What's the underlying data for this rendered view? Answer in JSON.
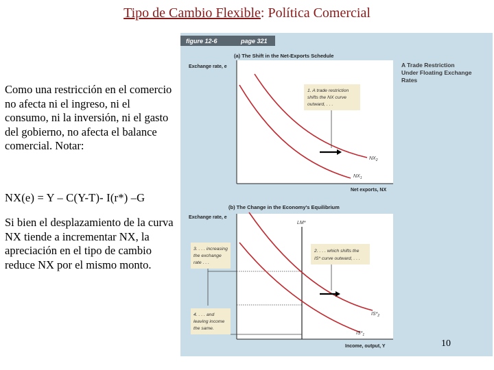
{
  "slide": {
    "title_main": "Tipo de Cambio Flexible",
    "title_rest": ": Política Comercial",
    "paragraph1": "Como una restricción en el comercio no afecta ni el ingreso, ni el consumo, ni la inversión, ni el gasto del gobierno, no afecta el balance comercial. Notar:",
    "equation": "NX(e) = Y – C(Y-T)- I(r*) –G",
    "paragraph2": "Si bien el desplazamiento de la curva NX tiende a incrementar NX, la apreciación en el tipo de cambio reduce NX por el mismo monto.",
    "slide_number": "10"
  },
  "figure": {
    "figure_label": "figure 12-6",
    "page_label": "page 321",
    "side_title": [
      "A Trade Restriction",
      "Under Floating Exchange",
      "Rates"
    ],
    "panel_a": {
      "heading": "(a) The Shift in the Net-Exports Schedule",
      "ylabel": "Exchange rate, e",
      "xlabel": "Net exports, NX",
      "note": [
        "1. A trade restriction",
        "shifts the NX curve",
        "outward, . . ."
      ],
      "curve_labels": [
        "NX",
        "NX"
      ],
      "curve_subscripts": [
        "2",
        "1"
      ]
    },
    "panel_b": {
      "heading": "(b) The Change in the Economy's Equilibrium",
      "ylabel": "Exchange rate, e",
      "xlabel": "Income, output, Y",
      "lm_label": "LM*",
      "note_left_top": [
        "3. . . . increasing",
        "the exchange",
        "rate . . ."
      ],
      "note_right": [
        "2. . . . which shifts the",
        "IS* curve outward, . . ."
      ],
      "note_left_bottom": [
        "4. . . . and",
        "leaving income",
        "the same."
      ],
      "curve_labels": [
        "IS*",
        "IS*"
      ],
      "curve_subscripts": [
        "2",
        "1"
      ]
    },
    "colors": {
      "panel_bg": "#c9dde9",
      "plot_bg": "#ffffff",
      "curve": "#c1272d",
      "note_bg": "#f4ecd0",
      "bar_bg": "#5b6770"
    }
  }
}
